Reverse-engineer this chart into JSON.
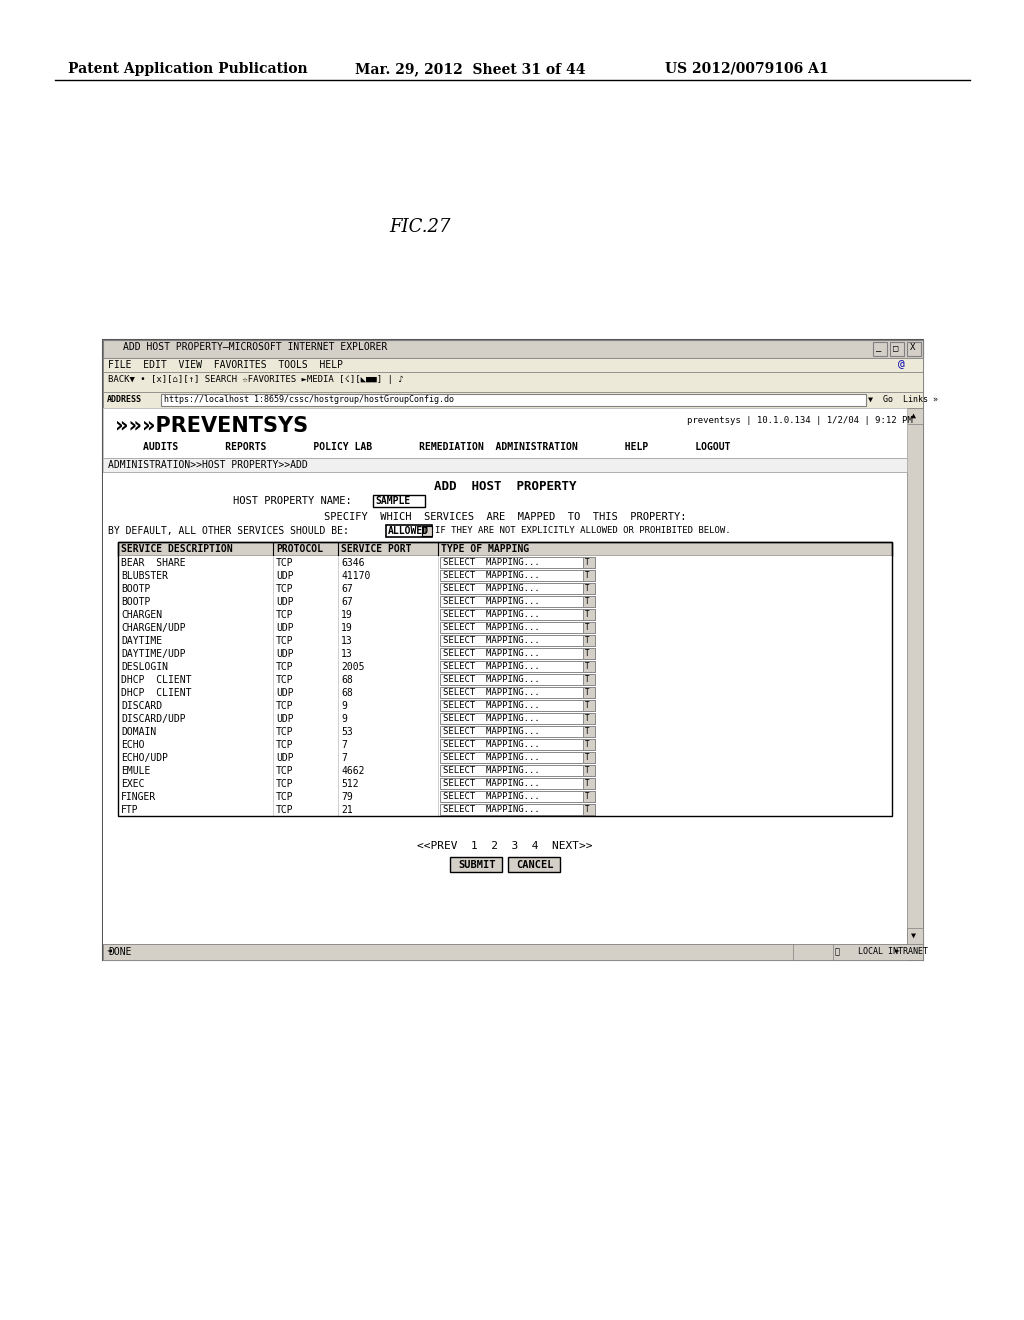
{
  "page_header_left": "Patent Application Publication",
  "page_header_mid": "Mar. 29, 2012  Sheet 31 of 44",
  "page_header_right": "US 2012/0079106 A1",
  "fig_label": "FIC.27",
  "browser_title": "ADD HOST PROPERTY–MICROSOFT INTERNET EXPLORER",
  "menu_bar": "FILE  EDIT  VIEW  FAVORITES  TOOLS  HELP",
  "address_url": "https://localhost 1:8659/cssc/hostgroup/hostGroupConfig.do",
  "logo_text": "»»»PREVENTSYS",
  "logo_info": "preventsys | 10.1.0.134 | 1/2/04 | 9:12 PM",
  "nav_items": "AUDITS        REPORTS        POLICY LAB        REMEDIATION  ADMINISTRATION        HELP        LOGOUT",
  "breadcrumb": "ADMINISTRATION>>HOST PROPERTY>>ADD",
  "page_title": "ADD  HOST  PROPERTY",
  "host_property_label": "HOST PROPERTY NAME:",
  "host_property_value": "SAMPLE",
  "specify_text": "SPECIFY  WHICH  SERVICES  ARE  MAPPED  TO  THIS  PROPERTY:",
  "default_text_pre": "BY DEFAULT, ALL OTHER SERVICES SHOULD BE:",
  "allowed_value": "ALLOWED",
  "default_text_post": "IF THEY ARE NOT EXPLICITLY ALLOWED OR PROHIBITED BELOW.",
  "table_headers": [
    "SERVICE DESCRIPTION",
    "PROTOCOL",
    "SERVICE PORT",
    "TYPE OF MAPPING"
  ],
  "table_rows": [
    [
      "BEAR  SHARE",
      "TCP",
      "6346",
      "SELECT  MAPPING..."
    ],
    [
      "BLUBSTER",
      "UDP",
      "41170",
      "SELECT  MAPPING..."
    ],
    [
      "BOOTP",
      "TCP",
      "67",
      "SELECT  MAPPING..."
    ],
    [
      "BOOTP",
      "UDP",
      "67",
      "SELECT  MAPPING..."
    ],
    [
      "CHARGEN",
      "TCP",
      "19",
      "SELECT  MAPPING..."
    ],
    [
      "CHARGEN/UDP",
      "UDP",
      "19",
      "SELECT  MAPPING..."
    ],
    [
      "DAYTIME",
      "TCP",
      "13",
      "SELECT  MAPPING..."
    ],
    [
      "DAYTIME/UDP",
      "UDP",
      "13",
      "SELECT  MAPPING..."
    ],
    [
      "DESLOGIN",
      "TCP",
      "2005",
      "SELECT  MAPPING..."
    ],
    [
      "DHCP  CLIENT",
      "TCP",
      "68",
      "SELECT  MAPPING..."
    ],
    [
      "DHCP  CLIENT",
      "UDP",
      "68",
      "SELECT  MAPPING..."
    ],
    [
      "DISCARD",
      "TCP",
      "9",
      "SELECT  MAPPING..."
    ],
    [
      "DISCARD/UDP",
      "UDP",
      "9",
      "SELECT  MAPPING..."
    ],
    [
      "DOMAIN",
      "TCP",
      "53",
      "SELECT  MAPPING..."
    ],
    [
      "ECHO",
      "TCP",
      "7",
      "SELECT  MAPPING..."
    ],
    [
      "ECHO/UDP",
      "UDP",
      "7",
      "SELECT  MAPPING..."
    ],
    [
      "EMULE",
      "TCP",
      "4662",
      "SELECT  MAPPING..."
    ],
    [
      "EXEC",
      "TCP",
      "512",
      "SELECT  MAPPING..."
    ],
    [
      "FINGER",
      "TCP",
      "79",
      "SELECT  MAPPING..."
    ],
    [
      "FTP",
      "TCP",
      "21",
      "SELECT  MAPPING..."
    ]
  ],
  "pagination": "<<PREV  1  2  3  4  NEXT>>",
  "submit_btn": "SUBMIT",
  "cancel_btn": "CANCEL",
  "status_left": "DONE",
  "status_right": "LOCAL INTRANET",
  "bg_color": "#ffffff"
}
